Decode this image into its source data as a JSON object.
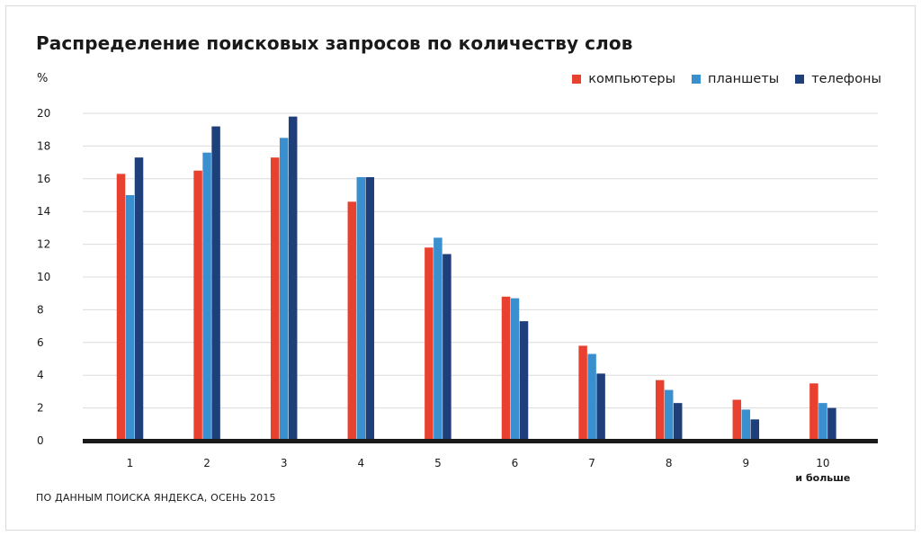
{
  "chart_data": {
    "type": "bar",
    "title": "Распределение поисковых запросов по количеству слов",
    "ylabel": "%",
    "xlabel": "",
    "ylim": [
      0,
      20
    ],
    "yticks": [
      0,
      2,
      4,
      6,
      8,
      10,
      12,
      14,
      16,
      18,
      20
    ],
    "grid": true,
    "legend_position": "top-right",
    "categories": [
      "1",
      "2",
      "3",
      "4",
      "5",
      "6",
      "7",
      "8",
      "9",
      "10"
    ],
    "category_sublabels": [
      "",
      "",
      "",
      "",
      "",
      "",
      "",
      "",
      "",
      "и больше"
    ],
    "series": [
      {
        "name": "компьютеры",
        "color": "#e8412f",
        "values": [
          16.3,
          16.5,
          17.3,
          14.6,
          11.8,
          8.8,
          5.8,
          3.7,
          2.5,
          3.5
        ]
      },
      {
        "name": "планшеты",
        "color": "#3a8fcf",
        "values": [
          15.0,
          17.6,
          18.5,
          16.1,
          12.4,
          8.7,
          5.3,
          3.1,
          1.9,
          2.3
        ]
      },
      {
        "name": "телефоны",
        "color": "#1e3f7a",
        "values": [
          17.3,
          19.2,
          19.8,
          16.1,
          11.4,
          7.3,
          4.1,
          2.3,
          1.3,
          2.0
        ]
      }
    ],
    "source": "ПО ДАННЫМ ПОИСКА ЯНДЕКСА, ОСЕНЬ 2015"
  }
}
